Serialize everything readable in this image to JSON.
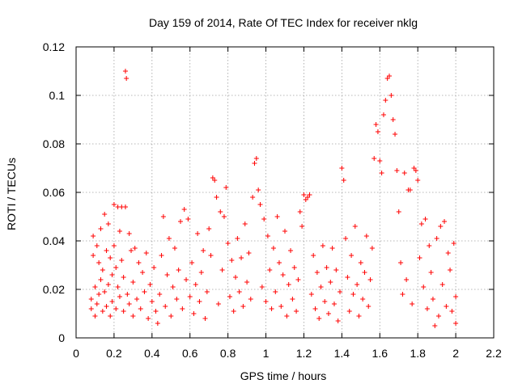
{
  "chart_data": {
    "type": "scatter",
    "title": "Day 159 of 2014, Rate Of TEC Index for receiver nklg",
    "xlabel": "GPS time / hours",
    "ylabel": "ROTI / TECUs",
    "xlim": [
      0,
      2.2
    ],
    "ylim": [
      0,
      0.12
    ],
    "x_ticks": [
      0,
      0.2,
      0.4,
      0.6,
      0.8,
      1,
      1.2,
      1.4,
      1.6,
      1.8,
      2,
      2.2
    ],
    "x_tick_labels": [
      "0",
      "0.2",
      "0.4",
      "0.6",
      "0.8",
      "1",
      "1.2",
      "1.4",
      "1.6",
      "1.8",
      "2",
      "2.2"
    ],
    "y_ticks": [
      0,
      0.02,
      0.04,
      0.06,
      0.08,
      0.1,
      0.12
    ],
    "y_tick_labels": [
      "0",
      "0.02",
      "0.04",
      "0.06",
      "0.08",
      "0.1",
      "0.12"
    ],
    "grid": true,
    "marker": "+",
    "color": "#ff0000",
    "series": [
      {
        "name": "ROTI",
        "points": [
          [
            0.08,
            0.012
          ],
          [
            0.08,
            0.016
          ],
          [
            0.09,
            0.042
          ],
          [
            0.09,
            0.034
          ],
          [
            0.1,
            0.021
          ],
          [
            0.1,
            0.009
          ],
          [
            0.11,
            0.014
          ],
          [
            0.11,
            0.038
          ],
          [
            0.12,
            0.031
          ],
          [
            0.12,
            0.018
          ],
          [
            0.13,
            0.045
          ],
          [
            0.13,
            0.024
          ],
          [
            0.14,
            0.011
          ],
          [
            0.14,
            0.028
          ],
          [
            0.15,
            0.051
          ],
          [
            0.15,
            0.019
          ],
          [
            0.16,
            0.036
          ],
          [
            0.16,
            0.013
          ],
          [
            0.17,
            0.047
          ],
          [
            0.17,
            0.022
          ],
          [
            0.18,
            0.009
          ],
          [
            0.18,
            0.033
          ],
          [
            0.19,
            0.026
          ],
          [
            0.19,
            0.015
          ],
          [
            0.2,
            0.055
          ],
          [
            0.2,
            0.038
          ],
          [
            0.21,
            0.029
          ],
          [
            0.21,
            0.012
          ],
          [
            0.22,
            0.054
          ],
          [
            0.22,
            0.021
          ],
          [
            0.23,
            0.044
          ],
          [
            0.23,
            0.017
          ],
          [
            0.24,
            0.054
          ],
          [
            0.24,
            0.032
          ],
          [
            0.25,
            0.011
          ],
          [
            0.25,
            0.025
          ],
          [
            0.26,
            0.11
          ],
          [
            0.265,
            0.107
          ],
          [
            0.26,
            0.054
          ],
          [
            0.27,
            0.018
          ],
          [
            0.28,
            0.043
          ],
          [
            0.28,
            0.014
          ],
          [
            0.29,
            0.036
          ],
          [
            0.3,
            0.023
          ],
          [
            0.3,
            0.009
          ],
          [
            0.31,
            0.037
          ],
          [
            0.32,
            0.016
          ],
          [
            0.33,
            0.031
          ],
          [
            0.34,
            0.012
          ],
          [
            0.35,
            0.027
          ],
          [
            0.36,
            0.019
          ],
          [
            0.37,
            0.035
          ],
          [
            0.38,
            0.008
          ],
          [
            0.39,
            0.022
          ],
          [
            0.4,
            0.015
          ],
          [
            0.41,
            0.029
          ],
          [
            0.42,
            0.011
          ],
          [
            0.43,
            0.006
          ],
          [
            0.44,
            0.018
          ],
          [
            0.45,
            0.034
          ],
          [
            0.46,
            0.05
          ],
          [
            0.47,
            0.013
          ],
          [
            0.48,
            0.026
          ],
          [
            0.49,
            0.041
          ],
          [
            0.5,
            0.009
          ],
          [
            0.51,
            0.021
          ],
          [
            0.52,
            0.037
          ],
          [
            0.53,
            0.016
          ],
          [
            0.54,
            0.028
          ],
          [
            0.55,
            0.048
          ],
          [
            0.56,
            0.012
          ],
          [
            0.57,
            0.053
          ],
          [
            0.58,
            0.024
          ],
          [
            0.59,
            0.049
          ],
          [
            0.6,
            0.017
          ],
          [
            0.61,
            0.031
          ],
          [
            0.62,
            0.01
          ],
          [
            0.63,
            0.022
          ],
          [
            0.64,
            0.043
          ],
          [
            0.65,
            0.015
          ],
          [
            0.66,
            0.027
          ],
          [
            0.67,
            0.036
          ],
          [
            0.68,
            0.008
          ],
          [
            0.69,
            0.019
          ],
          [
            0.7,
            0.045
          ],
          [
            0.71,
            0.034
          ],
          [
            0.72,
            0.066
          ],
          [
            0.73,
            0.065
          ],
          [
            0.74,
            0.058
          ],
          [
            0.75,
            0.014
          ],
          [
            0.76,
            0.052
          ],
          [
            0.77,
            0.028
          ],
          [
            0.78,
            0.05
          ],
          [
            0.79,
            0.062
          ],
          [
            0.8,
            0.039
          ],
          [
            0.81,
            0.017
          ],
          [
            0.82,
            0.032
          ],
          [
            0.83,
            0.011
          ],
          [
            0.84,
            0.025
          ],
          [
            0.85,
            0.041
          ],
          [
            0.86,
            0.019
          ],
          [
            0.87,
            0.033
          ],
          [
            0.88,
            0.013
          ],
          [
            0.89,
            0.047
          ],
          [
            0.9,
            0.023
          ],
          [
            0.91,
            0.035
          ],
          [
            0.92,
            0.016
          ],
          [
            0.93,
            0.058
          ],
          [
            0.94,
            0.072
          ],
          [
            0.95,
            0.074
          ],
          [
            0.96,
            0.061
          ],
          [
            0.97,
            0.055
          ],
          [
            0.98,
            0.021
          ],
          [
            0.99,
            0.049
          ],
          [
            1.0,
            0.015
          ],
          [
            1.01,
            0.042
          ],
          [
            1.02,
            0.028
          ],
          [
            1.03,
            0.012
          ],
          [
            1.04,
            0.037
          ],
          [
            1.05,
            0.019
          ],
          [
            1.06,
            0.05
          ],
          [
            1.07,
            0.031
          ],
          [
            1.08,
            0.013
          ],
          [
            1.09,
            0.026
          ],
          [
            1.1,
            0.044
          ],
          [
            1.11,
            0.009
          ],
          [
            1.12,
            0.022
          ],
          [
            1.13,
            0.036
          ],
          [
            1.14,
            0.016
          ],
          [
            1.15,
            0.029
          ],
          [
            1.16,
            0.011
          ],
          [
            1.17,
            0.024
          ],
          [
            1.18,
            0.052
          ],
          [
            1.19,
            0.046
          ],
          [
            1.2,
            0.059
          ],
          [
            1.21,
            0.057
          ],
          [
            1.22,
            0.058
          ],
          [
            1.23,
            0.059
          ],
          [
            1.24,
            0.018
          ],
          [
            1.25,
            0.034
          ],
          [
            1.26,
            0.012
          ],
          [
            1.27,
            0.027
          ],
          [
            1.28,
            0.008
          ],
          [
            1.29,
            0.021
          ],
          [
            1.3,
            0.038
          ],
          [
            1.31,
            0.015
          ],
          [
            1.32,
            0.029
          ],
          [
            1.33,
            0.01
          ],
          [
            1.34,
            0.023
          ],
          [
            1.35,
            0.037
          ],
          [
            1.36,
            0.014
          ],
          [
            1.37,
            0.028
          ],
          [
            1.38,
            0.007
          ],
          [
            1.39,
            0.019
          ],
          [
            1.4,
            0.07
          ],
          [
            1.41,
            0.065
          ],
          [
            1.42,
            0.041
          ],
          [
            1.43,
            0.025
          ],
          [
            1.44,
            0.011
          ],
          [
            1.45,
            0.034
          ],
          [
            1.46,
            0.018
          ],
          [
            1.47,
            0.046
          ],
          [
            1.48,
            0.022
          ],
          [
            1.49,
            0.009
          ],
          [
            1.5,
            0.031
          ],
          [
            1.51,
            0.016
          ],
          [
            1.52,
            0.027
          ],
          [
            1.53,
            0.042
          ],
          [
            1.54,
            0.013
          ],
          [
            1.55,
            0.024
          ],
          [
            1.56,
            0.037
          ],
          [
            1.57,
            0.074
          ],
          [
            1.58,
            0.088
          ],
          [
            1.59,
            0.085
          ],
          [
            1.6,
            0.073
          ],
          [
            1.61,
            0.068
          ],
          [
            1.62,
            0.092
          ],
          [
            1.63,
            0.098
          ],
          [
            1.64,
            0.107
          ],
          [
            1.65,
            0.108
          ],
          [
            1.66,
            0.1
          ],
          [
            1.67,
            0.09
          ],
          [
            1.68,
            0.084
          ],
          [
            1.69,
            0.069
          ],
          [
            1.7,
            0.052
          ],
          [
            1.71,
            0.031
          ],
          [
            1.72,
            0.018
          ],
          [
            1.73,
            0.068
          ],
          [
            1.74,
            0.024
          ],
          [
            1.75,
            0.061
          ],
          [
            1.76,
            0.061
          ],
          [
            1.77,
            0.014
          ],
          [
            1.78,
            0.07
          ],
          [
            1.79,
            0.069
          ],
          [
            1.8,
            0.065
          ],
          [
            1.81,
            0.033
          ],
          [
            1.82,
            0.047
          ],
          [
            1.83,
            0.021
          ],
          [
            1.84,
            0.049
          ],
          [
            1.85,
            0.012
          ],
          [
            1.86,
            0.038
          ],
          [
            1.87,
            0.027
          ],
          [
            1.88,
            0.016
          ],
          [
            1.89,
            0.005
          ],
          [
            1.9,
            0.041
          ],
          [
            1.91,
            0.009
          ],
          [
            1.92,
            0.046
          ],
          [
            1.93,
            0.022
          ],
          [
            1.94,
            0.048
          ],
          [
            1.95,
            0.013
          ],
          [
            1.96,
            0.035
          ],
          [
            1.97,
            0.028
          ],
          [
            1.98,
            0.011
          ],
          [
            1.99,
            0.039
          ],
          [
            2.0,
            0.017
          ],
          [
            2.0,
            0.006
          ]
        ]
      }
    ]
  }
}
